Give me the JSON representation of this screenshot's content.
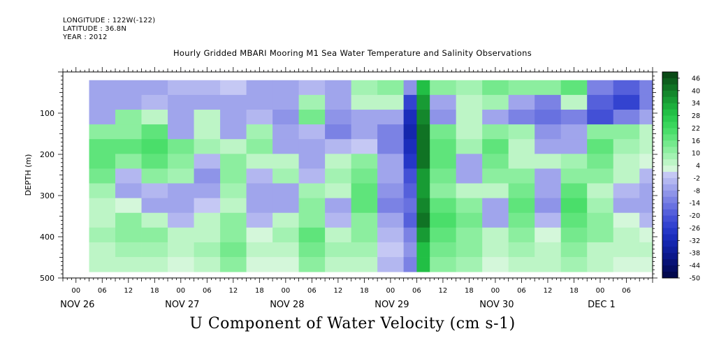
{
  "meta": {
    "longitude": "LONGITUDE : 122W(-122)",
    "latitude": "LATITUDE : 36.8N",
    "year": "YEAR : 2012"
  },
  "title": "Hourly Gridded MBARI Mooring M1 Sea Water Temperature and Salinity Observations",
  "bottom_title": "U Component of Water Velocity (cm s-1)",
  "chart_data": {
    "type": "heatmap",
    "title": "Hourly Gridded MBARI Mooring M1 Sea Water Temperature and Salinity Observations",
    "xlabel": "",
    "ylabel": "DEPTH (m)",
    "colorbar_label": "U Component of Water Velocity (cm s-1)",
    "y_reversed": true,
    "ylim": [
      500,
      0
    ],
    "y_ticks": [
      100,
      200,
      300,
      400,
      500
    ],
    "x_hour_ticks": [
      "00",
      "06",
      "12",
      "18",
      "00",
      "06",
      "12",
      "18",
      "00",
      "06",
      "12",
      "18",
      "00",
      "06",
      "12",
      "18",
      "00",
      "06",
      "12",
      "18",
      "00",
      "06"
    ],
    "x_day_labels": [
      "NOV 26",
      "NOV 27",
      "NOV 28",
      "NOV 29",
      "NOV 30",
      "DEC  1"
    ],
    "colorbar_ticks": [
      46,
      40,
      34,
      28,
      22,
      16,
      10,
      4,
      -2,
      -8,
      -14,
      -20,
      -26,
      -32,
      -38,
      -44,
      -50
    ],
    "colorbar_levels": [
      {
        "level": 46,
        "color": "#0a4a16"
      },
      {
        "level": 43,
        "color": "#0d5e1d"
      },
      {
        "level": 40,
        "color": "#107324"
      },
      {
        "level": 37,
        "color": "#14872c"
      },
      {
        "level": 34,
        "color": "#189b34"
      },
      {
        "level": 31,
        "color": "#1cae3c"
      },
      {
        "level": 28,
        "color": "#22bf45"
      },
      {
        "level": 25,
        "color": "#2ccc50"
      },
      {
        "level": 22,
        "color": "#3ad65c"
      },
      {
        "level": 19,
        "color": "#4ade6a"
      },
      {
        "level": 16,
        "color": "#5fe47b"
      },
      {
        "level": 13,
        "color": "#75e98d"
      },
      {
        "level": 10,
        "color": "#8cee9f"
      },
      {
        "level": 7,
        "color": "#a3f2b2"
      },
      {
        "level": 4,
        "color": "#bdf5c6"
      },
      {
        "level": 1,
        "color": "#d4f7da"
      },
      {
        "level": -2,
        "color": "#c5c8f4"
      },
      {
        "level": -5,
        "color": "#b3b7f0"
      },
      {
        "level": -8,
        "color": "#a0a5ec"
      },
      {
        "level": -11,
        "color": "#8e94e8"
      },
      {
        "level": -14,
        "color": "#7b82e4"
      },
      {
        "level": -17,
        "color": "#6871e0"
      },
      {
        "level": -20,
        "color": "#5560db"
      },
      {
        "level": -23,
        "color": "#4350d6"
      },
      {
        "level": -26,
        "color": "#3343d0"
      },
      {
        "level": -29,
        "color": "#2537c7"
      },
      {
        "level": -32,
        "color": "#1b2dbb"
      },
      {
        "level": -35,
        "color": "#1426ad"
      },
      {
        "level": -38,
        "color": "#0f1f9c"
      },
      {
        "level": -41,
        "color": "#0b188a"
      },
      {
        "level": -44,
        "color": "#081276"
      },
      {
        "level": -47,
        "color": "#050d62"
      },
      {
        "level": -50,
        "color": "#03094e"
      }
    ],
    "data_range": {
      "depth_m": [
        20,
        485
      ],
      "start": "NOV 26 03",
      "end": "DEC 1 09"
    },
    "columns": [
      {
        "time": "NOV 26 03",
        "values": [
          -6,
          -8,
          -6,
          10,
          18,
          16,
          14,
          8,
          6,
          4,
          8,
          6,
          4
        ]
      },
      {
        "time": "NOV 26 09",
        "values": [
          -8,
          -6,
          10,
          12,
          16,
          12,
          -4,
          -6,
          2,
          10,
          12,
          8,
          4
        ]
      },
      {
        "time": "NOV 26 15",
        "values": [
          -6,
          -4,
          6,
          18,
          20,
          16,
          10,
          -4,
          -6,
          4,
          10,
          8,
          6
        ]
      },
      {
        "time": "NOV 26 21",
        "values": [
          -4,
          -6,
          -8,
          -6,
          14,
          12,
          8,
          -6,
          -8,
          -4,
          6,
          4,
          2
        ]
      },
      {
        "time": "NOV 27 03",
        "values": [
          -4,
          -8,
          6,
          4,
          8,
          -4,
          -10,
          -6,
          -2,
          4,
          6,
          8,
          6
        ]
      },
      {
        "time": "NOV 27 09",
        "values": [
          -2,
          -6,
          -8,
          -6,
          4,
          10,
          12,
          8,
          6,
          10,
          12,
          14,
          10
        ]
      },
      {
        "time": "NOV 27 15",
        "values": [
          -6,
          -8,
          -4,
          8,
          10,
          6,
          -4,
          -6,
          -8,
          -4,
          2,
          4,
          2
        ]
      },
      {
        "time": "NOV 27 21",
        "values": [
          -8,
          -6,
          -10,
          -8,
          -6,
          4,
          8,
          -6,
          -8,
          6,
          8,
          4,
          2
        ]
      },
      {
        "time": "NOV 28 03",
        "values": [
          -4,
          8,
          14,
          -4,
          -8,
          -6,
          -4,
          8,
          10,
          12,
          16,
          14,
          10
        ]
      },
      {
        "time": "NOV 28 09",
        "values": [
          -8,
          -6,
          -10,
          -12,
          -4,
          6,
          8,
          4,
          -6,
          -4,
          4,
          8,
          6
        ]
      },
      {
        "time": "NOV 28 15",
        "values": [
          8,
          4,
          -6,
          -8,
          -2,
          10,
          14,
          18,
          16,
          12,
          10,
          8,
          6
        ]
      },
      {
        "time": "NOV 28 21",
        "values": [
          10,
          4,
          -6,
          -14,
          -12,
          -6,
          -8,
          -10,
          -12,
          -8,
          -4,
          -2,
          -4
        ]
      },
      {
        "time": "NOV 29 03",
        "values": [
          -10,
          -24,
          -30,
          -34,
          -30,
          -28,
          -22,
          -18,
          -16,
          -20,
          -14,
          -10,
          -12
        ]
      },
      {
        "time": "NOV 29 06",
        "values": [
          30,
          34,
          38,
          40,
          42,
          40,
          36,
          36,
          38,
          40,
          34,
          30,
          28
        ]
      },
      {
        "time": "NOV 29 09",
        "values": [
          12,
          -6,
          -10,
          14,
          16,
          18,
          14,
          10,
          16,
          20,
          18,
          14,
          12
        ]
      },
      {
        "time": "NOV 29 15",
        "values": [
          8,
          6,
          4,
          6,
          8,
          -6,
          -8,
          6,
          10,
          14,
          12,
          10,
          8
        ]
      },
      {
        "time": "NOV 29 21",
        "values": [
          14,
          8,
          -6,
          12,
          16,
          14,
          10,
          4,
          -6,
          -8,
          6,
          4,
          2
        ]
      },
      {
        "time": "NOV 30 03",
        "values": [
          10,
          -8,
          -14,
          8,
          6,
          4,
          10,
          14,
          16,
          14,
          10,
          8,
          6
        ]
      },
      {
        "time": "NOV 30 09",
        "values": [
          12,
          -12,
          -16,
          -10,
          -6,
          4,
          -6,
          -8,
          -10,
          -4,
          2,
          6,
          4
        ]
      },
      {
        "time": "NOV 30 15",
        "values": [
          16,
          6,
          -12,
          -6,
          -8,
          8,
          12,
          16,
          20,
          18,
          14,
          10,
          8
        ]
      },
      {
        "time": "NOV 30 21",
        "values": [
          -14,
          -20,
          -22,
          12,
          18,
          14,
          10,
          6,
          8,
          12,
          10,
          6,
          4
        ]
      },
      {
        "time": "DEC 1 03",
        "values": [
          -18,
          -24,
          -14,
          10,
          8,
          6,
          4,
          -4,
          -6,
          2,
          4,
          6,
          2
        ]
      },
      {
        "time": "DEC 1 09",
        "values": [
          -12,
          -14,
          -8,
          6,
          4,
          2,
          -4,
          -6,
          -8,
          -4,
          2,
          4,
          2
        ]
      }
    ]
  }
}
